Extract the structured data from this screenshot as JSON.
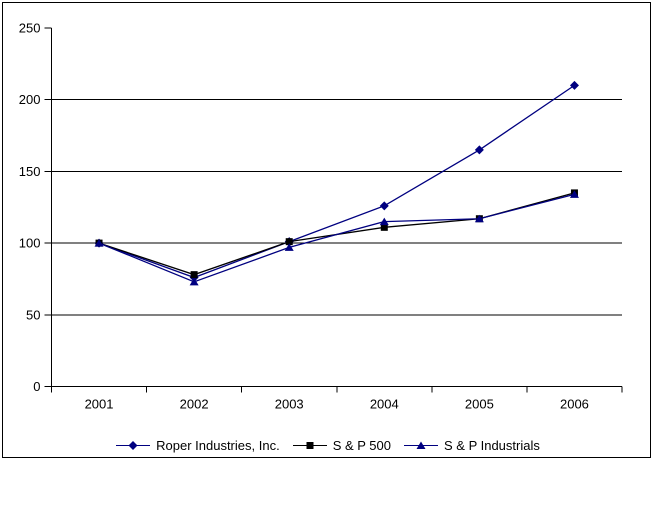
{
  "chart_data": {
    "type": "line",
    "title": "",
    "xlabel": "",
    "ylabel": "",
    "categories": [
      "2001",
      "2002",
      "2003",
      "2004",
      "2005",
      "2006"
    ],
    "series": [
      {
        "name": "Roper Industries, Inc.",
        "values": [
          100,
          76,
          101,
          126,
          165,
          210
        ],
        "color": "#000080",
        "marker": "diamond"
      },
      {
        "name": "S & P 500",
        "values": [
          100,
          78,
          101,
          111,
          117,
          135
        ],
        "color": "#000000",
        "marker": "square"
      },
      {
        "name": "S & P Industrials",
        "values": [
          100,
          73,
          97,
          115,
          117,
          134
        ],
        "color": "#000080",
        "marker": "triangle"
      }
    ],
    "ylim": [
      0,
      250
    ],
    "yticks": [
      0,
      50,
      100,
      150,
      200,
      250
    ],
    "grid": true,
    "gridline_color": "#000000",
    "axis_color": "#000000",
    "text_color": "#000000",
    "legend_position": "bottom"
  }
}
